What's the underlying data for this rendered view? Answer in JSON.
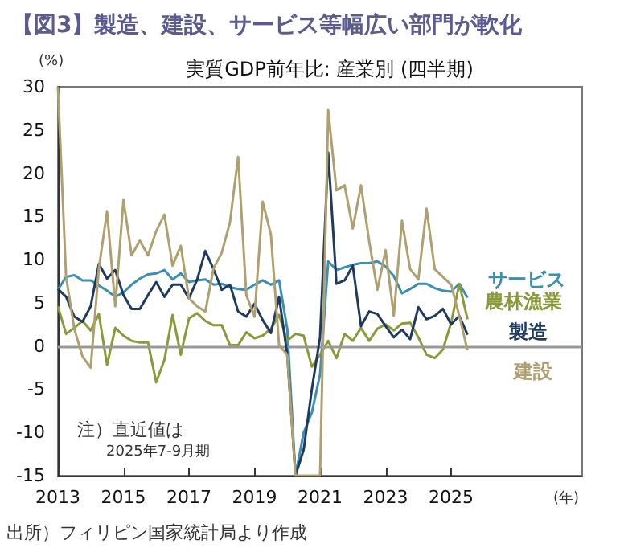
{
  "chart_data": {
    "type": "line",
    "title": "【図3】製造、建設、サービス等幅広い部門が軟化",
    "subtitle": "実質GDP前年比: 産業別 (四半期)",
    "xlabel": "(年)",
    "ylabel": "(%)",
    "x": [
      2013,
      2013.25,
      2013.5,
      2013.75,
      2014,
      2014.25,
      2014.5,
      2014.75,
      2015,
      2015.25,
      2015.5,
      2015.75,
      2016,
      2016.25,
      2016.5,
      2016.75,
      2017,
      2017.25,
      2017.5,
      2017.75,
      2018,
      2018.25,
      2018.5,
      2018.75,
      2019,
      2019.25,
      2019.5,
      2019.75,
      2020,
      2020.25,
      2020.5,
      2020.75,
      2021,
      2021.25,
      2021.5,
      2021.75,
      2022,
      2022.25,
      2022.5,
      2022.75,
      2023,
      2023.25,
      2023.5,
      2023.75,
      2024,
      2024.25,
      2024.5,
      2024.75,
      2025,
      2025.25,
      2025.5
    ],
    "series": [
      {
        "name": "サービス",
        "color": "#3b8fb3",
        "values": [
          6.5,
          8.0,
          8.2,
          7.6,
          7.6,
          7.0,
          6.4,
          5.7,
          6.2,
          7.1,
          7.8,
          8.3,
          8.4,
          8.8,
          7.7,
          8.4,
          7.4,
          7.6,
          7.7,
          7.1,
          7.2,
          6.8,
          6.6,
          6.5,
          7.1,
          7.6,
          7.1,
          7.6,
          2.0,
          -15,
          -10,
          -7.7,
          -3.3,
          9.8,
          8.8,
          9.1,
          9.4,
          9.6,
          9.6,
          9.8,
          9.2,
          8.1,
          6.1,
          6.6,
          7.2,
          7.2,
          6.7,
          6.4,
          6.3,
          7.2,
          5.6
        ]
      },
      {
        "name": "農林漁業",
        "color": "#8a9a3a",
        "values": [
          4.6,
          1.4,
          2.1,
          2.9,
          1.8,
          3.7,
          -2.2,
          2.1,
          1.2,
          0.6,
          0.4,
          0.4,
          -4.2,
          -1.6,
          3.6,
          -1.0,
          3.2,
          3.8,
          2.9,
          2.4,
          2.4,
          0.1,
          0.1,
          1.6,
          0.9,
          1.2,
          2.0,
          3.6,
          0.6,
          1.4,
          1.2,
          -2.4,
          -1.0,
          0.6,
          -1.4,
          1.4,
          0.6,
          2.1,
          0.6,
          2.0,
          2.5,
          1.8,
          2.6,
          2.7,
          1.0,
          -1.0,
          -1.4,
          -0.4,
          2.7,
          7.2,
          3.1
        ]
      },
      {
        "name": "製造",
        "color": "#1f3a5f",
        "values": [
          6.6,
          5.7,
          3.4,
          2.8,
          4.6,
          9.5,
          7.8,
          8.8,
          5.9,
          4.3,
          4.3,
          5.9,
          7.4,
          5.7,
          7.1,
          7.1,
          5.5,
          7.7,
          11.0,
          8.9,
          6.5,
          7.1,
          4.0,
          3.4,
          4.9,
          3.0,
          1.5,
          5.7,
          -1.0,
          -15,
          -12,
          -5,
          1.0,
          22.4,
          7.2,
          7.6,
          9.3,
          2.3,
          4.0,
          3.7,
          2.3,
          1.0,
          1.9,
          0.8,
          4.5,
          3.1,
          3.5,
          4.3,
          2.5,
          3.5,
          1.3
        ]
      },
      {
        "name": "建設",
        "color": "#b0a070",
        "values": [
          30,
          8,
          2,
          -1.2,
          -2.5,
          9.0,
          15.6,
          4.6,
          16.9,
          10.5,
          12.2,
          10.5,
          13.3,
          15.2,
          9.3,
          11.6,
          5.5,
          4.6,
          4.0,
          9.0,
          10.8,
          14.3,
          21.9,
          5.9,
          3.4,
          16.7,
          12.9,
          0.1,
          -1.0,
          -15,
          -15,
          -15,
          -15,
          27.3,
          18.0,
          18.6,
          13.6,
          18.6,
          12.1,
          6.5,
          11.1,
          3.5,
          14.5,
          8.9,
          7.7,
          15.9,
          8.9,
          8.0,
          7.1,
          3.5,
          -0.5
        ]
      }
    ],
    "xlim": [
      2013,
      2029
    ],
    "xticks": [
      2013,
      2015,
      2017,
      2019,
      2021,
      2023,
      2025
    ],
    "ylim": [
      -15,
      30
    ],
    "yticks": [
      -15,
      -10,
      -5,
      0,
      5,
      10,
      15,
      20,
      25,
      30
    ],
    "ref_lines": [
      {
        "axis": "y",
        "value": 0,
        "color": "#999999"
      }
    ],
    "annotations": [
      "注）直近値は\n2025年7-9月期",
      "出所）フィリピン国家統計局より作成"
    ],
    "grid": false,
    "legend": false,
    "marker": "none",
    "line_style": "solid"
  }
}
